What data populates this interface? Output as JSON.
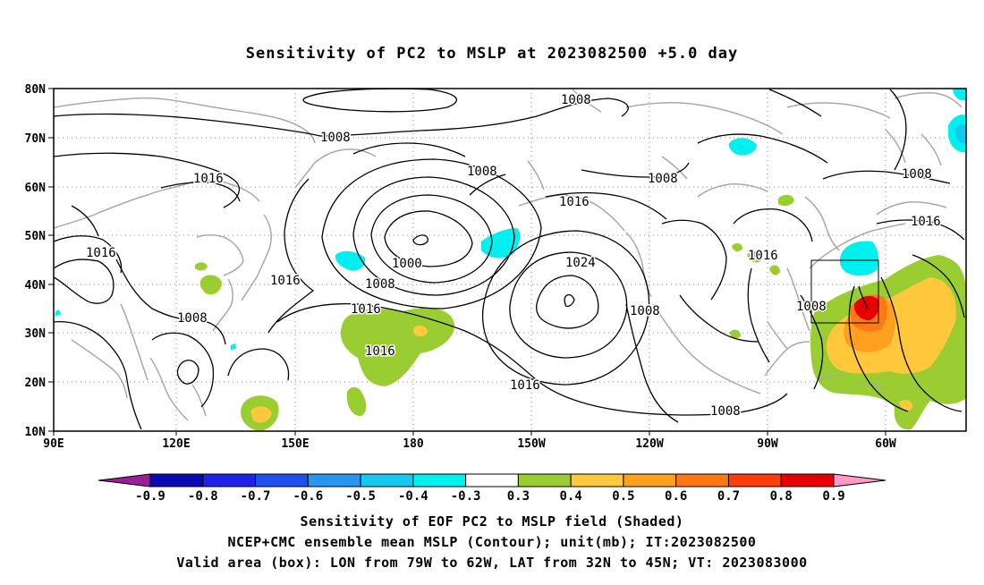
{
  "title": "Sensitivity of PC2 to MSLP at 2023082500 +5.0 day",
  "axes": {
    "lat_labels": [
      "80N",
      "70N",
      "60N",
      "50N",
      "40N",
      "30N",
      "20N",
      "10N"
    ],
    "lon_labels": [
      "90E",
      "120E",
      "150E",
      "180",
      "150W",
      "120W",
      "90W",
      "60W"
    ]
  },
  "contour_labels": [
    "1008",
    "1008",
    "1008",
    "1008",
    "1008",
    "1016",
    "1016",
    "1016",
    "1016",
    "1016",
    "1016",
    "1016",
    "1000",
    "1008",
    "1024",
    "1008",
    "1016",
    "1016",
    "1008",
    "1008",
    "1008",
    "1008"
  ],
  "colorbar": {
    "labels": [
      "-0.9",
      "-0.8",
      "-0.7",
      "-0.6",
      "-0.5",
      "-0.4",
      "-0.3",
      "0.3",
      "0.4",
      "0.5",
      "0.6",
      "0.7",
      "0.8",
      "0.9"
    ],
    "colors": [
      "#9b1f9b",
      "#0a0ab4",
      "#1e24e6",
      "#1e50f0",
      "#2896f0",
      "#14c8f0",
      "#00f0f0",
      "#ffffff",
      "#9acd32",
      "#ffc83c",
      "#ffa01e",
      "#ff7814",
      "#ff3c0a",
      "#e60000",
      "#ff9ac8"
    ]
  },
  "valid_box": {
    "lon_from": "79W",
    "lon_to": "62W",
    "lat_from": "32N",
    "lat_to": "45N"
  },
  "captions": {
    "line1": "Sensitivity of EOF PC2 to MSLP field (Shaded)",
    "line2": "NCEP+CMC ensemble mean MSLP (Contour); unit(mb); IT:2023082500",
    "line3": "Valid area (box): LON from 79W to 62W, LAT from 32N to 45N; VT: 2023083000"
  }
}
